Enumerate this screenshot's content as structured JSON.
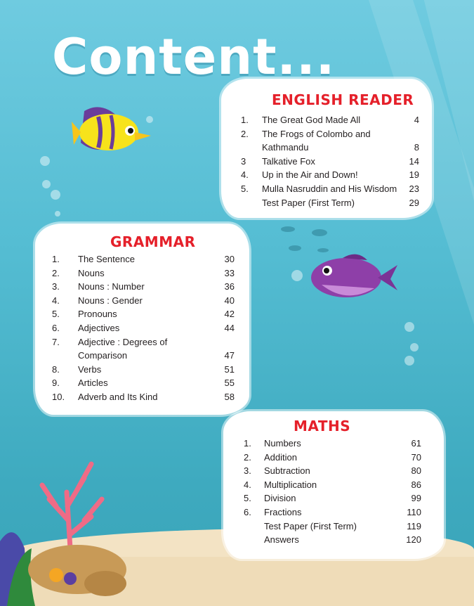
{
  "page_title": "Content...",
  "sections": {
    "english": {
      "heading": "ENGLISH READER",
      "items": [
        {
          "num": "1.",
          "title": "The Great God Made All",
          "page": "4"
        },
        {
          "num": "2.",
          "title": "The Frogs of Colombo and",
          "page": ""
        },
        {
          "num": "",
          "title": "Kathmandu",
          "page": "8"
        },
        {
          "num": "3",
          "title": "Talkative Fox",
          "page": "14"
        },
        {
          "num": "4.",
          "title": "Up in the Air and Down!",
          "page": "19"
        },
        {
          "num": "5.",
          "title": "Mulla Nasruddin and His Wisdom",
          "page": "23"
        },
        {
          "num": "",
          "title": "Test Paper (First Term)",
          "page": "29"
        }
      ]
    },
    "grammar": {
      "heading": "GRAMMAR",
      "items": [
        {
          "num": "1.",
          "title": "The Sentence",
          "page": "30"
        },
        {
          "num": "2.",
          "title": "Nouns",
          "page": "33"
        },
        {
          "num": "3.",
          "title": "Nouns : Number",
          "page": "36"
        },
        {
          "num": "4.",
          "title": "Nouns : Gender",
          "page": "40"
        },
        {
          "num": "5.",
          "title": "Pronouns",
          "page": "42"
        },
        {
          "num": "6.",
          "title": "Adjectives",
          "page": "44"
        },
        {
          "num": "7.",
          "title": "Adjective : Degrees of",
          "page": ""
        },
        {
          "num": "",
          "title": "Comparison",
          "page": "47"
        },
        {
          "num": "8.",
          "title": "Verbs",
          "page": "51"
        },
        {
          "num": "9.",
          "title": "Articles",
          "page": "55"
        },
        {
          "num": "10.",
          "title": "Adverb and Its Kind",
          "page": "58"
        }
      ]
    },
    "maths": {
      "heading": "MATHS",
      "items": [
        {
          "num": "1.",
          "title": "Numbers",
          "page": "61"
        },
        {
          "num": "2.",
          "title": "Addition",
          "page": "70"
        },
        {
          "num": "3.",
          "title": "Subtraction",
          "page": "80"
        },
        {
          "num": "4.",
          "title": "Multiplication",
          "page": "86"
        },
        {
          "num": "5.",
          "title": "Division",
          "page": "99"
        },
        {
          "num": "6.",
          "title": "Fractions",
          "page": "110"
        },
        {
          "num": "",
          "title": "Test Paper (First Term)",
          "page": "119"
        },
        {
          "num": "",
          "title": "Answers",
          "page": "120"
        }
      ]
    }
  },
  "colors": {
    "heading": "#e5202a",
    "water": "#55bdd3",
    "sand": "#f3e3c4"
  }
}
